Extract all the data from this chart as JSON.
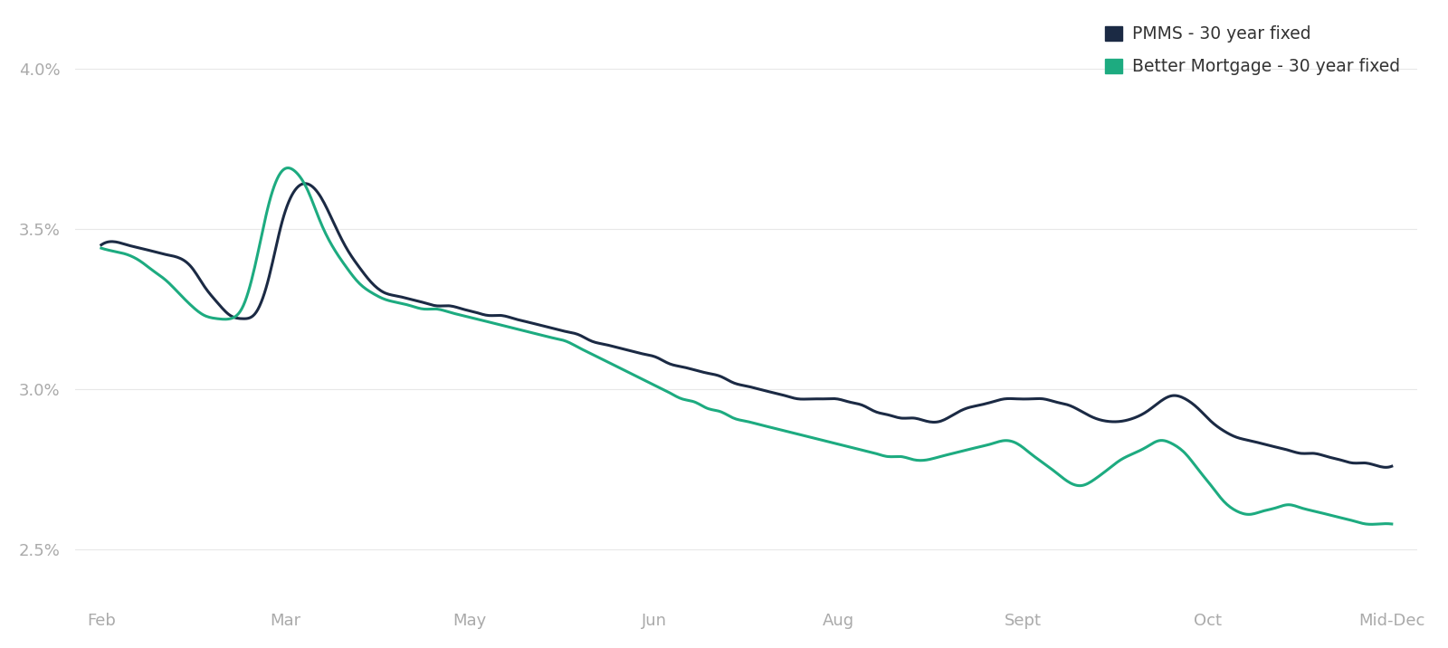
{
  "x_tick_labels": [
    "Feb",
    "Mar",
    "May",
    "Jun",
    "Aug",
    "Sept",
    "Oct",
    "Mid-Dec"
  ],
  "y_tick_labels": [
    "2.5%",
    "3.0%",
    "3.5%",
    "4.0%"
  ],
  "y_ticks": [
    2.5,
    3.0,
    3.5,
    4.0
  ],
  "ylim": [
    2.35,
    4.15
  ],
  "xlim": [
    -2,
    102
  ],
  "pmms_color": "#1b2a44",
  "better_color": "#1dab80",
  "background_color": "#ffffff",
  "legend_pmms": "PMMS - 30 year fixed",
  "legend_better": "Better Mortgage - 30 year fixed",
  "pmms_y": [
    3.45,
    3.46,
    3.45,
    3.44,
    3.43,
    3.42,
    3.41,
    3.38,
    3.32,
    3.27,
    3.23,
    3.22,
    3.24,
    3.35,
    3.52,
    3.62,
    3.64,
    3.6,
    3.52,
    3.44,
    3.38,
    3.33,
    3.3,
    3.29,
    3.28,
    3.27,
    3.26,
    3.26,
    3.25,
    3.24,
    3.23,
    3.23,
    3.22,
    3.21,
    3.2,
    3.19,
    3.18,
    3.17,
    3.15,
    3.14,
    3.13,
    3.12,
    3.11,
    3.1,
    3.08,
    3.07,
    3.06,
    3.05,
    3.04,
    3.02,
    3.01,
    3.0,
    2.99,
    2.98,
    2.97,
    2.97,
    2.97,
    2.97,
    2.96,
    2.95,
    2.93,
    2.92,
    2.91,
    2.91,
    2.9,
    2.9,
    2.92,
    2.94,
    2.95,
    2.96,
    2.97,
    2.97,
    2.97,
    2.97,
    2.96,
    2.95,
    2.93,
    2.91,
    2.9,
    2.9,
    2.91,
    2.93,
    2.96,
    2.98,
    2.97,
    2.94,
    2.9,
    2.87,
    2.85,
    2.84,
    2.83,
    2.82,
    2.81,
    2.8,
    2.8,
    2.79,
    2.78,
    2.77,
    2.77,
    2.76,
    2.76
  ],
  "better_y": [
    3.44,
    3.43,
    3.42,
    3.4,
    3.37,
    3.34,
    3.3,
    3.26,
    3.23,
    3.22,
    3.22,
    3.26,
    3.4,
    3.58,
    3.68,
    3.68,
    3.62,
    3.52,
    3.44,
    3.38,
    3.33,
    3.3,
    3.28,
    3.27,
    3.26,
    3.25,
    3.25,
    3.24,
    3.23,
    3.22,
    3.21,
    3.2,
    3.19,
    3.18,
    3.17,
    3.16,
    3.15,
    3.13,
    3.11,
    3.09,
    3.07,
    3.05,
    3.03,
    3.01,
    2.99,
    2.97,
    2.96,
    2.94,
    2.93,
    2.91,
    2.9,
    2.89,
    2.88,
    2.87,
    2.86,
    2.85,
    2.84,
    2.83,
    2.82,
    2.81,
    2.8,
    2.79,
    2.79,
    2.78,
    2.78,
    2.79,
    2.8,
    2.81,
    2.82,
    2.83,
    2.84,
    2.83,
    2.8,
    2.77,
    2.74,
    2.71,
    2.7,
    2.72,
    2.75,
    2.78,
    2.8,
    2.82,
    2.84,
    2.83,
    2.8,
    2.75,
    2.7,
    2.65,
    2.62,
    2.61,
    2.62,
    2.63,
    2.64,
    2.63,
    2.62,
    2.61,
    2.6,
    2.59,
    2.58,
    2.58,
    2.58
  ]
}
